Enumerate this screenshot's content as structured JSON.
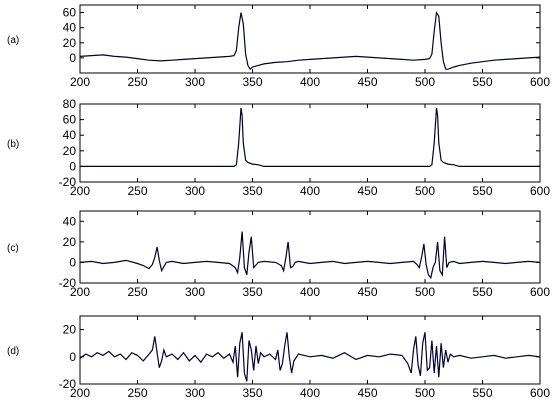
{
  "chart_data": [
    {
      "type": "line",
      "panel_label": "(a)",
      "xlim": [
        200,
        600
      ],
      "ylim": [
        -20,
        70
      ],
      "xticks": [
        200,
        250,
        300,
        350,
        400,
        450,
        500,
        550,
        600
      ],
      "yticks": [
        -20,
        0,
        20,
        40,
        60
      ],
      "ytick_labels": [
        "",
        "0",
        "20",
        "40",
        "60"
      ],
      "grid": false,
      "series": [
        {
          "color": "#000033",
          "x": [
            200,
            210,
            220,
            230,
            240,
            250,
            260,
            270,
            280,
            290,
            300,
            310,
            320,
            330,
            334,
            336,
            338,
            340,
            342,
            344,
            346,
            348,
            350,
            355,
            360,
            370,
            380,
            390,
            400,
            410,
            420,
            430,
            440,
            450,
            460,
            470,
            480,
            490,
            500,
            504,
            506,
            508,
            510,
            512,
            514,
            516,
            518,
            520,
            525,
            530,
            540,
            550,
            560,
            570,
            580,
            590,
            600
          ],
          "y": [
            2,
            3,
            4,
            2,
            1,
            -1,
            -3,
            -4,
            -3,
            -2,
            -1,
            0,
            1,
            2,
            3,
            10,
            40,
            60,
            45,
            5,
            -10,
            -15,
            -12,
            -10,
            -8,
            -6,
            -5,
            -3,
            -2,
            -1,
            0,
            1,
            2,
            1,
            0,
            -1,
            -2,
            -3,
            -2,
            -1,
            5,
            35,
            60,
            55,
            20,
            -5,
            -15,
            -15,
            -12,
            -10,
            -7,
            -5,
            -3,
            -2,
            -1,
            0,
            1
          ]
        }
      ]
    },
    {
      "type": "line",
      "panel_label": "(b)",
      "xlim": [
        200,
        600
      ],
      "ylim": [
        -20,
        80
      ],
      "xticks": [
        200,
        250,
        300,
        350,
        400,
        450,
        500,
        550,
        600
      ],
      "yticks": [
        -20,
        0,
        20,
        40,
        60,
        80
      ],
      "ytick_labels": [
        "-20",
        "0",
        "20",
        "40",
        "60",
        "80"
      ],
      "grid": false,
      "series": [
        {
          "color": "#000033",
          "x": [
            200,
            300,
            334,
            336,
            338,
            340,
            341,
            342,
            344,
            346,
            350,
            355,
            360,
            400,
            500,
            504,
            506,
            508,
            510,
            511,
            512,
            514,
            516,
            520,
            525,
            530,
            600
          ],
          "y": [
            0,
            0,
            0,
            2,
            30,
            75,
            65,
            30,
            8,
            5,
            3,
            2,
            0,
            0,
            0,
            0,
            2,
            30,
            75,
            65,
            30,
            8,
            5,
            3,
            2,
            0,
            0
          ]
        }
      ]
    },
    {
      "type": "line",
      "panel_label": "(c)",
      "xlim": [
        200,
        600
      ],
      "ylim": [
        -20,
        50
      ],
      "xticks": [
        200,
        250,
        300,
        350,
        400,
        450,
        500,
        550,
        600
      ],
      "yticks": [
        -20,
        0,
        20,
        40
      ],
      "ytick_labels": [
        "-20",
        "0",
        "20",
        "40"
      ],
      "grid": false,
      "series": [
        {
          "color": "#000033",
          "x": [
            200,
            210,
            220,
            230,
            240,
            250,
            255,
            260,
            263,
            265,
            267,
            269,
            271,
            273,
            275,
            280,
            290,
            300,
            310,
            320,
            330,
            335,
            337,
            339,
            341,
            343,
            345,
            347,
            349,
            351,
            355,
            360,
            370,
            375,
            377,
            379,
            381,
            383,
            385,
            387,
            390,
            400,
            410,
            420,
            430,
            440,
            450,
            460,
            470,
            480,
            490,
            493,
            495,
            497,
            499,
            501,
            503,
            505,
            507,
            509,
            511,
            513,
            515,
            517,
            519,
            521,
            525,
            530,
            540,
            550,
            560,
            570,
            580,
            590,
            600
          ],
          "y": [
            0,
            1,
            -1,
            0,
            2,
            -1,
            -3,
            -6,
            -2,
            5,
            15,
            2,
            -8,
            -4,
            0,
            1,
            -1,
            0,
            1,
            0,
            -1,
            -5,
            -10,
            5,
            30,
            -5,
            -12,
            10,
            25,
            -5,
            0,
            1,
            0,
            -3,
            -8,
            5,
            20,
            -5,
            -4,
            0,
            1,
            -1,
            0,
            1,
            -1,
            0,
            1,
            0,
            -1,
            0,
            1,
            -2,
            -5,
            5,
            18,
            -2,
            -12,
            -15,
            -5,
            0,
            20,
            -8,
            -12,
            25,
            -5,
            0,
            1,
            -1,
            0,
            1,
            0,
            -1,
            0,
            1,
            0
          ]
        }
      ]
    },
    {
      "type": "line",
      "panel_label": "(d)",
      "xlim": [
        200,
        600
      ],
      "ylim": [
        -20,
        30
      ],
      "xticks": [
        200,
        250,
        300,
        350,
        400,
        450,
        500,
        550,
        600
      ],
      "yticks": [
        -20,
        0,
        20
      ],
      "ytick_labels": [
        "-20",
        "0",
        "20"
      ],
      "grid": false,
      "series": [
        {
          "color": "#000033",
          "x": [
            200,
            205,
            210,
            215,
            220,
            225,
            230,
            235,
            240,
            245,
            250,
            255,
            260,
            263,
            265,
            267,
            269,
            271,
            273,
            275,
            280,
            285,
            290,
            295,
            300,
            305,
            310,
            315,
            320,
            325,
            330,
            333,
            335,
            337,
            339,
            341,
            343,
            345,
            347,
            349,
            351,
            353,
            355,
            357,
            360,
            365,
            370,
            372,
            374,
            376,
            378,
            380,
            382,
            384,
            386,
            390,
            400,
            410,
            420,
            430,
            440,
            450,
            460,
            470,
            480,
            485,
            488,
            490,
            492,
            494,
            496,
            498,
            500,
            502,
            504,
            506,
            508,
            510,
            512,
            514,
            516,
            518,
            520,
            522,
            525,
            530,
            540,
            550,
            560,
            570,
            580,
            590,
            600
          ],
          "y": [
            -1,
            2,
            0,
            3,
            1,
            4,
            0,
            2,
            -2,
            3,
            1,
            -3,
            2,
            5,
            15,
            3,
            -8,
            -3,
            5,
            0,
            2,
            -2,
            3,
            -3,
            1,
            -4,
            2,
            0,
            3,
            -1,
            2,
            -4,
            8,
            -15,
            10,
            18,
            -12,
            -18,
            12,
            5,
            -10,
            8,
            -5,
            3,
            0,
            2,
            -2,
            5,
            -10,
            -5,
            8,
            18,
            0,
            -12,
            -3,
            2,
            0,
            1,
            -1,
            3,
            -2,
            1,
            0,
            2,
            1,
            -5,
            -12,
            5,
            15,
            -6,
            -14,
            10,
            18,
            -10,
            -8,
            12,
            -12,
            8,
            -15,
            10,
            -8,
            5,
            -4,
            2,
            0,
            1,
            -1,
            0,
            1,
            -1,
            0,
            1,
            0
          ]
        }
      ]
    }
  ]
}
